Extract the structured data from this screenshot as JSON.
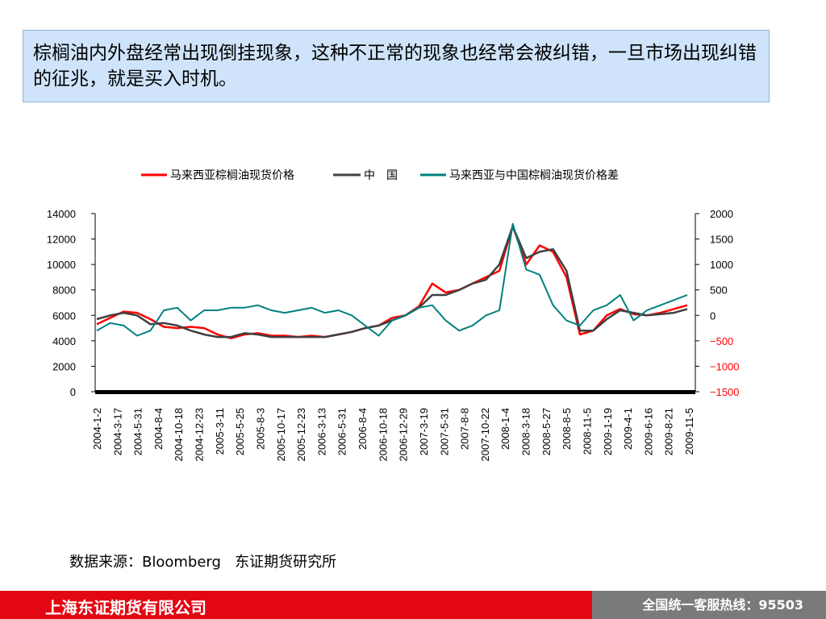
{
  "title_box": {
    "text": "棕榈油内外盘经常出现倒挂现象，这种不正常的现象也经常会被纠错，一旦市场出现纠错的征兆，就是买入时机。"
  },
  "source": "数据来源：Bloomberg   东证期货研究所",
  "footer": {
    "company": "上海东证期货有限公司",
    "hotline": "全国统一客服热线：95503"
  },
  "colors": {
    "malaysia": "#ff0000",
    "china": "#404040",
    "spread": "#008080",
    "right_axis_negative": "#ff0000"
  },
  "chart_data": {
    "type": "line",
    "legend": [
      "马来西亚棕榈油现货价格",
      "中　国",
      "马来西亚与中国棕榈油现货价格差"
    ],
    "legend_position": "top",
    "x_tick_labels": [
      "2004-1-2",
      "2004-3-17",
      "2004-5-31",
      "2004-8-4",
      "2004-10-18",
      "2004-12-23",
      "2005-3-11",
      "2005-5-25",
      "2005-8-3",
      "2005-10-17",
      "2005-12-23",
      "2006-3-13",
      "2006-5-31",
      "2006-8-4",
      "2006-10-18",
      "2006-12-29",
      "2007-3-19",
      "2007-5-31",
      "2007-8-8",
      "2007-10-22",
      "2008-1-4",
      "2008-3-18",
      "2008-5-27",
      "2008-8-5",
      "2008-11-5",
      "2009-1-19",
      "2009-4-1",
      "2009-6-16",
      "2009-8-21",
      "2009-11-5"
    ],
    "y_left": {
      "min": 0,
      "max": 14000,
      "ticks": [
        0,
        2000,
        4000,
        6000,
        8000,
        10000,
        12000,
        14000
      ]
    },
    "y_right": {
      "min": -1500,
      "max": 2000,
      "ticks": [
        -1500,
        -1000,
        -500,
        0,
        500,
        1000,
        1500,
        2000
      ],
      "tick_labels": [
        "−1500",
        "−1000",
        "−500",
        "0",
        "500",
        "1000",
        "1500",
        "2000"
      ]
    },
    "grid": false,
    "series": [
      {
        "name": "马来西亚棕榈油现货价格",
        "axis": "left",
        "values": [
          5300,
          5800,
          6300,
          6200,
          5700,
          5100,
          5000,
          5100,
          5000,
          4500,
          4200,
          4500,
          4600,
          4400,
          4400,
          4300,
          4400,
          4300,
          4500,
          4700,
          5000,
          5200,
          5800,
          6000,
          6700,
          8500,
          7800,
          8000,
          8500,
          9000,
          9500,
          13000,
          10000,
          11500,
          11000,
          9000,
          4500,
          4800,
          6000,
          6500,
          6100,
          6000,
          6200,
          6500,
          6800
        ]
      },
      {
        "name": "中　国",
        "axis": "left",
        "values": [
          5700,
          6000,
          6200,
          6000,
          5300,
          5400,
          5200,
          4800,
          4500,
          4300,
          4300,
          4600,
          4500,
          4300,
          4300,
          4300,
          4300,
          4300,
          4500,
          4700,
          5000,
          5200,
          5600,
          6000,
          6600,
          7600,
          7600,
          8000,
          8500,
          8800,
          10000,
          13000,
          10500,
          11000,
          11200,
          9500,
          4800,
          4800,
          5700,
          6400,
          6200,
          6000,
          6100,
          6200,
          6500
        ]
      },
      {
        "name": "马来西亚与中国棕榈油现货价格差",
        "axis": "right",
        "values": [
          -300,
          -150,
          -200,
          -400,
          -300,
          100,
          150,
          -100,
          100,
          100,
          150,
          150,
          200,
          100,
          50,
          100,
          150,
          50,
          100,
          0,
          -200,
          -400,
          -100,
          0,
          150,
          200,
          -100,
          -300,
          -200,
          0,
          100,
          1800,
          900,
          800,
          200,
          -100,
          -200,
          100,
          200,
          400,
          -100,
          100,
          200,
          300,
          400
        ]
      }
    ]
  }
}
